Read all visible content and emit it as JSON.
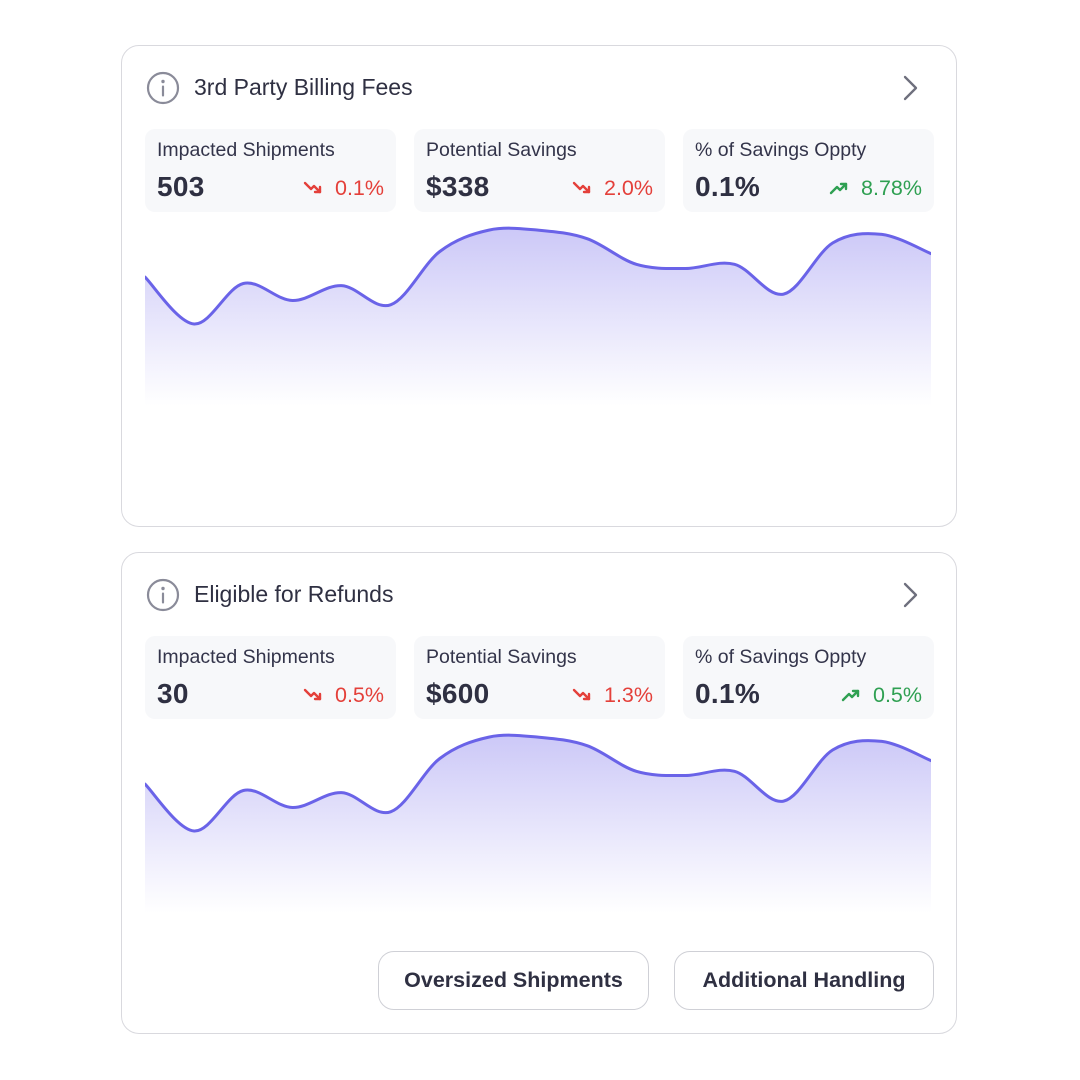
{
  "colors": {
    "accent_line": "#6a63e8",
    "fill_top": "#c9c5f7",
    "down": "#e4403a",
    "up": "#2fa052",
    "stat_bg": "#f7f8fa",
    "border": "#d9d9de"
  },
  "cards": [
    {
      "title": "3rd Party Billing Fees",
      "stats": [
        {
          "label": "Impacted Shipments",
          "value": "503",
          "change": "0.1%",
          "direction": "down"
        },
        {
          "label": "Potential Savings",
          "value": "$338",
          "change": "2.0%",
          "direction": "down"
        },
        {
          "label": "% of Savings Oppty",
          "value": "0.1%",
          "change": "8.78%",
          "direction": "up"
        }
      ]
    },
    {
      "title": "Eligible for Refunds",
      "stats": [
        {
          "label": "Impacted Shipments",
          "value": "30",
          "change": "0.5%",
          "direction": "down"
        },
        {
          "label": "Potential Savings",
          "value": "$600",
          "change": "1.3%",
          "direction": "down"
        },
        {
          "label": "% of Savings Oppty",
          "value": "0.1%",
          "change": "0.5%",
          "direction": "up"
        }
      ],
      "chips": [
        "Oversized Shipments",
        "Additional Handling"
      ]
    }
  ],
  "chart_data": [
    {
      "type": "area",
      "x": [
        0,
        1,
        2,
        3,
        4,
        5,
        6,
        7,
        8,
        9,
        10,
        11,
        12,
        13,
        14,
        15,
        16
      ],
      "values": [
        0.77,
        0.55,
        0.74,
        0.66,
        0.73,
        0.64,
        0.89,
        0.99,
        0.99,
        0.95,
        0.83,
        0.81,
        0.83,
        0.69,
        0.93,
        0.97,
        0.88
      ],
      "grid": false
    },
    {
      "type": "area",
      "x": [
        0,
        1,
        2,
        3,
        4,
        5,
        6,
        7,
        8,
        9,
        10,
        11,
        12,
        13,
        14,
        15,
        16
      ],
      "values": [
        0.77,
        0.55,
        0.74,
        0.66,
        0.73,
        0.64,
        0.89,
        0.99,
        0.99,
        0.95,
        0.83,
        0.81,
        0.83,
        0.69,
        0.93,
        0.97,
        0.88
      ],
      "grid": false
    }
  ],
  "icons": {
    "info": "info-circle-icon",
    "chevron": "chevron-right-icon",
    "down": "trending-down-icon",
    "up": "trending-up-icon"
  }
}
